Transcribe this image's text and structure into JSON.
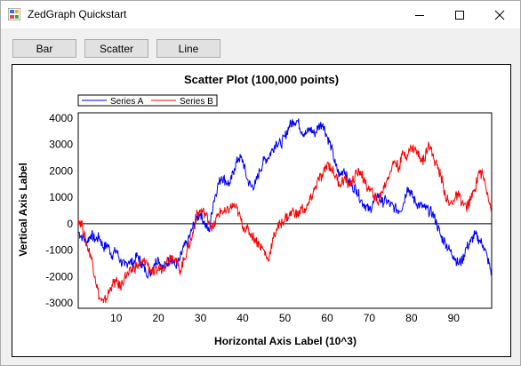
{
  "window": {
    "title": "ZedGraph Quickstart"
  },
  "toolbar": {
    "bar_label": "Bar",
    "scatter_label": "Scatter",
    "line_label": "Line"
  },
  "chart_data": {
    "type": "line",
    "title": "Scatter Plot (100,000 points)",
    "xlabel": "Horizontal Axis Label (10^3)",
    "ylabel": "Vertical Axis Label",
    "xlim": [
      1,
      99
    ],
    "ylim": [
      -3200,
      4200
    ],
    "xticks": [
      10,
      20,
      30,
      40,
      50,
      60,
      70,
      80,
      90
    ],
    "yticks": [
      -3000,
      -2000,
      -1000,
      0,
      1000,
      2000,
      3000,
      4000
    ],
    "legend": "top-left",
    "grid": false,
    "zero_line": true,
    "series": [
      {
        "name": "Series A",
        "color": "#0000ff",
        "x": [
          1,
          2,
          3,
          4,
          5,
          6,
          7,
          8,
          9,
          10,
          11,
          12,
          13,
          14,
          15,
          16,
          17,
          18,
          19,
          20,
          21,
          22,
          23,
          24,
          25,
          26,
          27,
          28,
          29,
          30,
          31,
          32,
          33,
          34,
          35,
          36,
          37,
          38,
          39,
          40,
          41,
          42,
          43,
          44,
          45,
          46,
          47,
          48,
          49,
          50,
          51,
          52,
          53,
          54,
          55,
          56,
          57,
          58,
          59,
          60,
          61,
          62,
          63,
          64,
          65,
          66,
          67,
          68,
          69,
          70,
          71,
          72,
          73,
          74,
          75,
          76,
          77,
          78,
          79,
          80,
          81,
          82,
          83,
          84,
          85,
          86,
          87,
          88,
          89,
          90,
          91,
          92,
          93,
          94,
          95,
          96,
          97,
          98,
          99
        ],
        "y": [
          -300,
          -500,
          -700,
          -400,
          -600,
          -500,
          -900,
          -800,
          -1200,
          -1000,
          -1400,
          -1600,
          -1400,
          -1500,
          -1200,
          -1500,
          -1800,
          -1900,
          -1500,
          -1300,
          -1700,
          -1500,
          -1300,
          -1600,
          -1400,
          -900,
          -700,
          -200,
          200,
          400,
          0,
          -300,
          800,
          1400,
          1800,
          1600,
          1500,
          2100,
          2500,
          2400,
          1700,
          1400,
          1500,
          2000,
          2400,
          2500,
          2800,
          3100,
          3000,
          3300,
          3700,
          3900,
          3900,
          3500,
          3400,
          3600,
          3400,
          3700,
          3800,
          3300,
          2900,
          2200,
          1800,
          2100,
          1600,
          1400,
          1300,
          900,
          700,
          500,
          800,
          1100,
          800,
          900,
          700,
          600,
          500,
          700,
          1400,
          1100,
          800,
          700,
          600,
          500,
          400,
          0,
          -500,
          -700,
          -1000,
          -1200,
          -1500,
          -1400,
          -900,
          -700,
          -400,
          -600,
          -800,
          -1300,
          -1900
        ]
      },
      {
        "name": "Series B",
        "color": "#ff0000",
        "x": [
          1,
          2,
          3,
          4,
          5,
          6,
          7,
          8,
          9,
          10,
          11,
          12,
          13,
          14,
          15,
          16,
          17,
          18,
          19,
          20,
          21,
          22,
          23,
          24,
          25,
          26,
          27,
          28,
          29,
          30,
          31,
          32,
          33,
          34,
          35,
          36,
          37,
          38,
          39,
          40,
          41,
          42,
          43,
          44,
          45,
          46,
          47,
          48,
          49,
          50,
          51,
          52,
          53,
          54,
          55,
          56,
          57,
          58,
          59,
          60,
          61,
          62,
          63,
          64,
          65,
          66,
          67,
          68,
          69,
          70,
          71,
          72,
          73,
          74,
          75,
          76,
          77,
          78,
          79,
          80,
          81,
          82,
          83,
          84,
          85,
          86,
          87,
          88,
          89,
          90,
          91,
          92,
          93,
          94,
          95,
          96,
          97,
          98,
          99
        ],
        "y": [
          200,
          -100,
          -800,
          -1200,
          -2000,
          -2800,
          -3000,
          -2700,
          -2300,
          -2200,
          -2400,
          -2000,
          -1900,
          -1700,
          -1600,
          -1500,
          -1400,
          -1700,
          -1900,
          -1700,
          -1700,
          -1400,
          -1200,
          -1300,
          -1800,
          -1400,
          -900,
          -500,
          300,
          500,
          400,
          100,
          -200,
          300,
          500,
          400,
          600,
          700,
          400,
          -100,
          -200,
          -400,
          -600,
          -800,
          -1000,
          -1400,
          -700,
          -200,
          0,
          200,
          300,
          500,
          300,
          600,
          500,
          900,
          1300,
          1700,
          1800,
          2300,
          2100,
          1800,
          1500,
          1700,
          1500,
          1600,
          1900,
          2000,
          1500,
          1300,
          1100,
          800,
          1200,
          1600,
          2000,
          2400,
          2100,
          2700,
          2600,
          2900,
          2800,
          2500,
          2400,
          3100,
          2600,
          2200,
          1800,
          1100,
          700,
          900,
          1100,
          800,
          600,
          900,
          1300,
          2000,
          1800,
          1200,
          500
        ]
      }
    ]
  }
}
